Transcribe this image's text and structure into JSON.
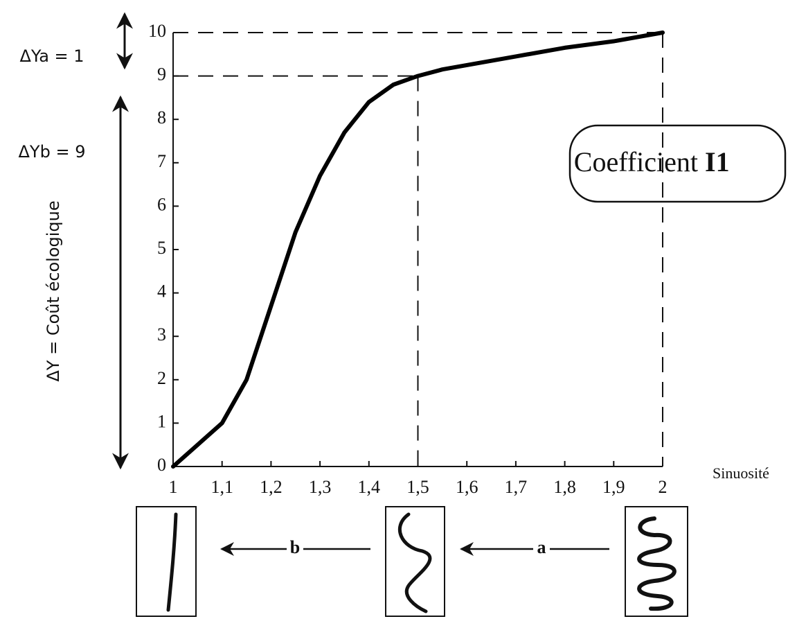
{
  "chart_data": {
    "type": "line",
    "x": [
      1,
      1.05,
      1.1,
      1.15,
      1.2,
      1.25,
      1.3,
      1.35,
      1.4,
      1.45,
      1.5,
      1.55,
      1.6,
      1.7,
      1.8,
      1.9,
      2
    ],
    "series": [
      {
        "color": "#000000",
        "values": [
          0,
          0.5,
          1,
          2,
          3.7,
          5.4,
          6.7,
          7.7,
          8.4,
          8.8,
          9,
          9.15,
          9.25,
          9.45,
          9.65,
          9.8,
          10
        ]
      }
    ],
    "xlim": [
      1,
      2
    ],
    "ylim": [
      0,
      10
    ],
    "xticks": [
      1,
      {
        "value": 1.1,
        "label": "1,1"
      },
      {
        "value": 1.2,
        "label": "1,2"
      },
      {
        "value": 1.3,
        "label": "1,3"
      },
      {
        "value": 1.4,
        "label": "1,4"
      },
      {
        "value": 1.5,
        "label": "1,5"
      },
      {
        "value": 1.6,
        "label": "1,6"
      },
      {
        "value": 1.7,
        "label": "1,7"
      },
      {
        "value": 1.8,
        "label": "1,8"
      },
      {
        "value": 1.9,
        "label": "1,9"
      },
      2
    ],
    "yticks": [
      0,
      1,
      2,
      3,
      4,
      5,
      6,
      7,
      8,
      9,
      10
    ],
    "xlabel": "Sinuosité",
    "ylabel": "ΔY = Coût écologique",
    "reference_points": [
      {
        "x": 1.5,
        "y": 9
      },
      {
        "x": 2,
        "y": 10
      }
    ],
    "annotations": {
      "delta_a": "ΔYa = 1",
      "delta_b": "ΔYb = 9",
      "coefficient": "Coefficient",
      "coefficient_bold": "I1",
      "arrow_a": "a",
      "arrow_b": "b"
    },
    "grid": false
  }
}
